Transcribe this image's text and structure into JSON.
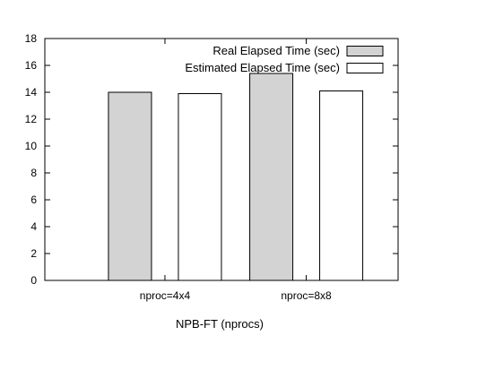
{
  "chart_data": {
    "type": "bar",
    "title": "",
    "xlabel": "NPB-FT (nprocs)",
    "ylabel": "",
    "categories": [
      "nproc=4x4",
      "nproc=8x8"
    ],
    "ylim": [
      0,
      18
    ],
    "yticks": [
      0,
      2,
      4,
      6,
      8,
      10,
      12,
      14,
      16,
      18
    ],
    "grid": false,
    "legend_position": "top-right",
    "series": [
      {
        "name": "Real Elapsed Time (sec)",
        "values": [
          14.0,
          15.4
        ],
        "color": "#d3d3d3"
      },
      {
        "name": "Estimated Elapsed Time (sec)",
        "values": [
          13.9,
          14.1
        ],
        "color": "#ffffff"
      }
    ]
  }
}
